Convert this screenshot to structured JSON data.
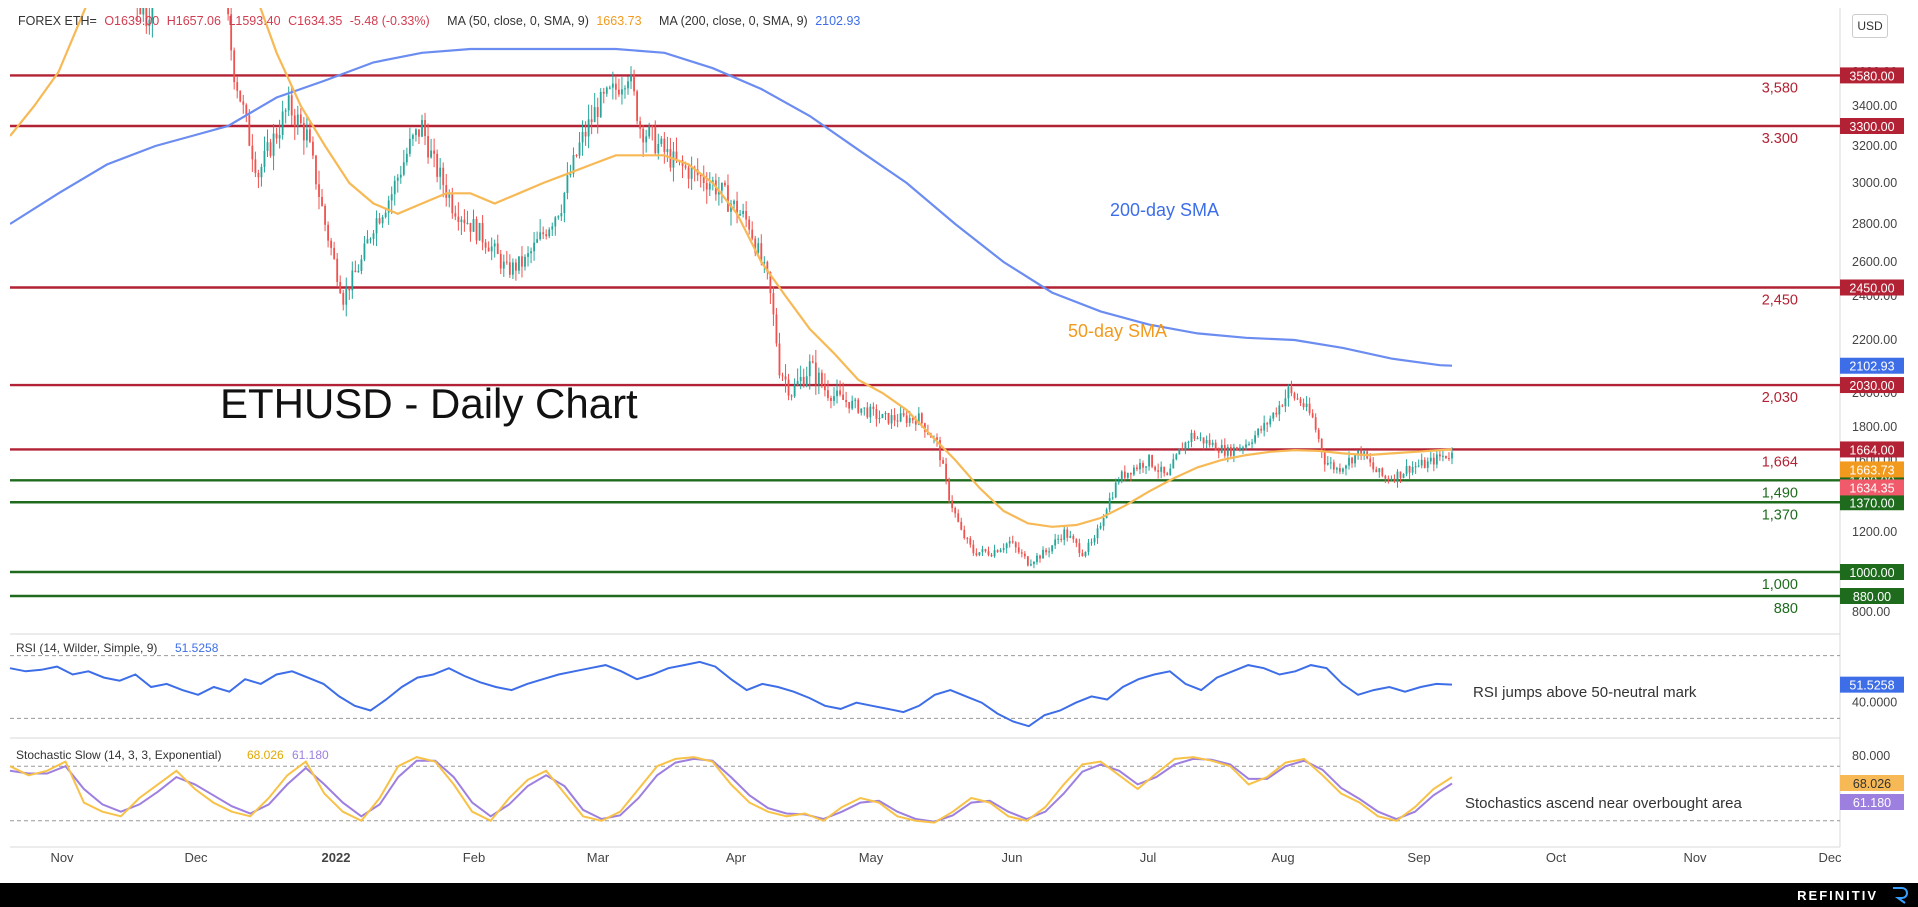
{
  "header": {
    "symbol": "FOREX ETH=",
    "open": "O1639.00",
    "high": "H1657.06",
    "low": "L1593.40",
    "close": "C1634.35",
    "change": "-5.48 (-0.33%)",
    "ma50_label": "MA (50, close, 0, SMA, 9)",
    "ma50_value": "1663.73",
    "ma200_label": "MA (200, close, 0, SMA, 9)",
    "ma200_value": "2102.93"
  },
  "currency_button": "USD",
  "chart_title": "ETHUSD - Daily Chart",
  "brand": "REFINITIV",
  "colors": {
    "up": "#26a69a",
    "down": "#ef5350",
    "ma50": "#f7b955",
    "ma200": "#6b8cf0",
    "resistance": "#b22234",
    "support": "#1e6b1e",
    "rsi": "#3d6ee8",
    "stoch_k": "#f7c247",
    "stoch_d": "#9d7fe0"
  },
  "chart_data": [
    {
      "type": "candlestick",
      "x_tick_labels": [
        "Nov",
        "Dec",
        "2022",
        "Feb",
        "Mar",
        "Apr",
        "May",
        "Jun",
        "Jul",
        "Aug",
        "Sep",
        "Oct",
        "Nov",
        "Dec"
      ],
      "y_tick_labels": [
        "800.00",
        "1000.00",
        "1200.00",
        "1400.00",
        "1600.00",
        "1800.00",
        "2000.00",
        "2200.00",
        "2400.00",
        "2600.00",
        "2800.00",
        "3000.00",
        "3200.00",
        "3400.00",
        "3600.00"
      ],
      "ylim": [
        700,
        4600
      ],
      "levels": [
        {
          "value": 3580,
          "label": "3,580",
          "tag": "3580.00",
          "kind": "resistance"
        },
        {
          "value": 3300,
          "label": "3.300",
          "tag": "3300.00",
          "kind": "resistance"
        },
        {
          "value": 2450,
          "label": "2,450",
          "tag": "2450.00",
          "kind": "resistance"
        },
        {
          "value": 2030,
          "label": "2,030",
          "tag": "2030.00",
          "kind": "resistance"
        },
        {
          "value": 1664,
          "label": "1,664",
          "tag": "1664.00",
          "kind": "resistance"
        },
        {
          "value": 1490,
          "label": "1,490",
          "tag": "1490.00",
          "kind": "support"
        },
        {
          "value": 1370,
          "label": "1,370",
          "tag": "1370.00",
          "kind": "support"
        },
        {
          "value": 1000,
          "label": "1,000",
          "tag": "1000.00",
          "kind": "support"
        },
        {
          "value": 880,
          "label": "880",
          "tag": "880.00",
          "kind": "support"
        }
      ],
      "price_tags": [
        {
          "value": 2102.93,
          "tag": "2102.93",
          "kind": "ma200"
        },
        {
          "value": 1663.73,
          "tag": "1663.73",
          "kind": "ma50"
        },
        {
          "value": 1634.35,
          "tag": "1634.35",
          "kind": "last"
        }
      ],
      "annotations": [
        {
          "text": "200-day SMA",
          "kind": "ma200"
        },
        {
          "text": "50-day SMA",
          "kind": "ma50"
        }
      ],
      "close_path": [
        [
          0,
          4300
        ],
        [
          8,
          4600
        ],
        [
          15,
          4700
        ],
        [
          22,
          4500
        ],
        [
          30,
          4250
        ],
        [
          38,
          4100
        ],
        [
          45,
          3900
        ],
        [
          52,
          4250
        ],
        [
          60,
          4550
        ],
        [
          66,
          4700
        ],
        [
          70,
          4100
        ],
        [
          74,
          3600
        ],
        [
          78,
          3300
        ],
        [
          82,
          3050
        ],
        [
          86,
          3200
        ],
        [
          92,
          3400
        ],
        [
          98,
          3250
        ],
        [
          104,
          2800
        ],
        [
          110,
          2400
        ],
        [
          116,
          2600
        ],
        [
          120,
          2800
        ],
        [
          126,
          2950
        ],
        [
          132,
          3200
        ],
        [
          136,
          3300
        ],
        [
          140,
          3100
        ],
        [
          146,
          2900
        ],
        [
          152,
          2800
        ],
        [
          158,
          2700
        ],
        [
          164,
          2550
        ],
        [
          170,
          2600
        ],
        [
          176,
          2750
        ],
        [
          182,
          2900
        ],
        [
          188,
          3200
        ],
        [
          194,
          3400
        ],
        [
          200,
          3500
        ],
        [
          204,
          3600
        ],
        [
          208,
          3300
        ],
        [
          214,
          3200
        ],
        [
          220,
          3100
        ],
        [
          226,
          3050
        ],
        [
          232,
          3000
        ],
        [
          238,
          2900
        ],
        [
          244,
          2800
        ],
        [
          250,
          2500
        ],
        [
          254,
          2100
        ],
        [
          258,
          2000
        ],
        [
          264,
          2100
        ],
        [
          270,
          2000
        ],
        [
          276,
          1950
        ],
        [
          282,
          1900
        ],
        [
          288,
          1850
        ],
        [
          294,
          1850
        ],
        [
          300,
          1850
        ],
        [
          306,
          1700
        ],
        [
          310,
          1400
        ],
        [
          314,
          1200
        ],
        [
          318,
          1100
        ],
        [
          324,
          1100
        ],
        [
          330,
          1150
        ],
        [
          336,
          1050
        ],
        [
          342,
          1100
        ],
        [
          348,
          1200
        ],
        [
          354,
          1100
        ],
        [
          358,
          1150
        ],
        [
          362,
          1350
        ],
        [
          366,
          1500
        ],
        [
          370,
          1550
        ],
        [
          376,
          1600
        ],
        [
          382,
          1500
        ],
        [
          386,
          1650
        ],
        [
          390,
          1750
        ],
        [
          396,
          1700
        ],
        [
          402,
          1650
        ],
        [
          408,
          1700
        ],
        [
          414,
          1800
        ],
        [
          418,
          1900
        ],
        [
          422,
          2000
        ],
        [
          426,
          1950
        ],
        [
          430,
          1850
        ],
        [
          434,
          1600
        ],
        [
          438,
          1550
        ],
        [
          442,
          1600
        ],
        [
          446,
          1650
        ],
        [
          450,
          1550
        ],
        [
          454,
          1500
        ],
        [
          458,
          1520
        ],
        [
          462,
          1560
        ],
        [
          468,
          1580
        ],
        [
          472,
          1620
        ],
        [
          476,
          1634
        ]
      ],
      "ma50": [
        [
          0,
          3250
        ],
        [
          8,
          3400
        ],
        [
          16,
          3600
        ],
        [
          24,
          3900
        ],
        [
          32,
          4200
        ],
        [
          40,
          4350
        ],
        [
          48,
          4450
        ],
        [
          56,
          4500
        ],
        [
          64,
          4450
        ],
        [
          72,
          4300
        ],
        [
          80,
          4050
        ],
        [
          88,
          3700
        ],
        [
          96,
          3400
        ],
        [
          104,
          3200
        ],
        [
          112,
          3000
        ],
        [
          120,
          2900
        ],
        [
          128,
          2850
        ],
        [
          136,
          2900
        ],
        [
          144,
          2950
        ],
        [
          152,
          2950
        ],
        [
          160,
          2900
        ],
        [
          168,
          2950
        ],
        [
          176,
          3000
        ],
        [
          184,
          3050
        ],
        [
          192,
          3100
        ],
        [
          200,
          3150
        ],
        [
          208,
          3150
        ],
        [
          216,
          3150
        ],
        [
          224,
          3100
        ],
        [
          232,
          3000
        ],
        [
          240,
          2850
        ],
        [
          248,
          2600
        ],
        [
          256,
          2400
        ],
        [
          264,
          2250
        ],
        [
          272,
          2150
        ],
        [
          280,
          2050
        ],
        [
          288,
          2000
        ],
        [
          296,
          1900
        ],
        [
          304,
          1750
        ],
        [
          312,
          1600
        ],
        [
          320,
          1450
        ],
        [
          328,
          1320
        ],
        [
          336,
          1250
        ],
        [
          344,
          1230
        ],
        [
          352,
          1240
        ],
        [
          360,
          1280
        ],
        [
          368,
          1350
        ],
        [
          376,
          1430
        ],
        [
          384,
          1500
        ],
        [
          392,
          1560
        ],
        [
          400,
          1600
        ],
        [
          408,
          1630
        ],
        [
          416,
          1650
        ],
        [
          424,
          1660
        ],
        [
          432,
          1655
        ],
        [
          440,
          1640
        ],
        [
          448,
          1630
        ],
        [
          456,
          1640
        ],
        [
          464,
          1650
        ],
        [
          472,
          1660
        ],
        [
          476,
          1664
        ]
      ],
      "ma200": [
        [
          0,
          2800
        ],
        [
          16,
          2950
        ],
        [
          32,
          3100
        ],
        [
          48,
          3200
        ],
        [
          60,
          3250
        ],
        [
          72,
          3300
        ],
        [
          88,
          3450
        ],
        [
          104,
          3550
        ],
        [
          120,
          3650
        ],
        [
          136,
          3700
        ],
        [
          152,
          3720
        ],
        [
          168,
          3720
        ],
        [
          184,
          3720
        ],
        [
          200,
          3720
        ],
        [
          216,
          3700
        ],
        [
          232,
          3620
        ],
        [
          248,
          3500
        ],
        [
          264,
          3350
        ],
        [
          280,
          3180
        ],
        [
          296,
          3000
        ],
        [
          312,
          2800
        ],
        [
          328,
          2600
        ],
        [
          344,
          2420
        ],
        [
          360,
          2330
        ],
        [
          376,
          2270
        ],
        [
          392,
          2230
        ],
        [
          408,
          2210
        ],
        [
          424,
          2200
        ],
        [
          440,
          2170
        ],
        [
          456,
          2130
        ],
        [
          472,
          2105
        ],
        [
          476,
          2103
        ]
      ]
    },
    {
      "type": "line",
      "title": "RSI (14, Wilder, Simple, 9)",
      "value": "51.5258",
      "y_tick_labels": [
        "40.0000"
      ],
      "ylim": [
        20,
        80
      ],
      "note": "RSI jumps above 50-neutral mark",
      "values": [
        62,
        60,
        61,
        63,
        58,
        60,
        56,
        54,
        58,
        50,
        52,
        48,
        45,
        50,
        47,
        55,
        52,
        58,
        60,
        56,
        52,
        44,
        38,
        35,
        42,
        50,
        56,
        58,
        62,
        57,
        53,
        50,
        48,
        52,
        55,
        58,
        60,
        62,
        64,
        60,
        55,
        58,
        62,
        64,
        66,
        63,
        55,
        48,
        52,
        50,
        47,
        43,
        38,
        36,
        40,
        38,
        36,
        34,
        38,
        45,
        48,
        44,
        40,
        33,
        28,
        25,
        32,
        35,
        40,
        44,
        42,
        50,
        55,
        58,
        60,
        52,
        48,
        56,
        60,
        64,
        62,
        58,
        60,
        64,
        62,
        52,
        45,
        48,
        50,
        47,
        50,
        52,
        51.5
      ]
    },
    {
      "type": "line",
      "title": "Stochastic Slow (14, 3, 3, Exponential)",
      "values_label": [
        "68.026",
        "61.180"
      ],
      "y_tick_labels": [
        "80.000"
      ],
      "ylim": [
        0,
        100
      ],
      "note": "Stochastics ascend near overbought area",
      "k": [
        80,
        70,
        75,
        85,
        40,
        30,
        25,
        45,
        60,
        75,
        55,
        40,
        30,
        25,
        45,
        70,
        85,
        50,
        30,
        20,
        45,
        80,
        90,
        85,
        60,
        30,
        20,
        45,
        65,
        75,
        50,
        25,
        20,
        30,
        55,
        80,
        88,
        90,
        85,
        60,
        40,
        30,
        25,
        28,
        20,
        35,
        45,
        40,
        25,
        20,
        18,
        30,
        45,
        40,
        25,
        20,
        35,
        60,
        82,
        85,
        70,
        55,
        72,
        88,
        90,
        86,
        80,
        60,
        68,
        84,
        88,
        70,
        50,
        40,
        25,
        20,
        35,
        55,
        68
      ],
      "d": [
        75,
        72,
        72,
        80,
        55,
        38,
        30,
        38,
        52,
        68,
        60,
        48,
        36,
        28,
        38,
        60,
        78,
        60,
        40,
        25,
        38,
        68,
        86,
        86,
        68,
        40,
        25,
        38,
        58,
        70,
        58,
        32,
        22,
        26,
        45,
        70,
        84,
        88,
        86,
        68,
        48,
        34,
        28,
        27,
        22,
        30,
        40,
        42,
        30,
        22,
        19,
        26,
        40,
        42,
        30,
        22,
        30,
        50,
        74,
        82,
        75,
        60,
        68,
        82,
        88,
        87,
        82,
        66,
        66,
        80,
        86,
        76,
        56,
        44,
        30,
        22,
        30,
        48,
        61
      ]
    }
  ]
}
